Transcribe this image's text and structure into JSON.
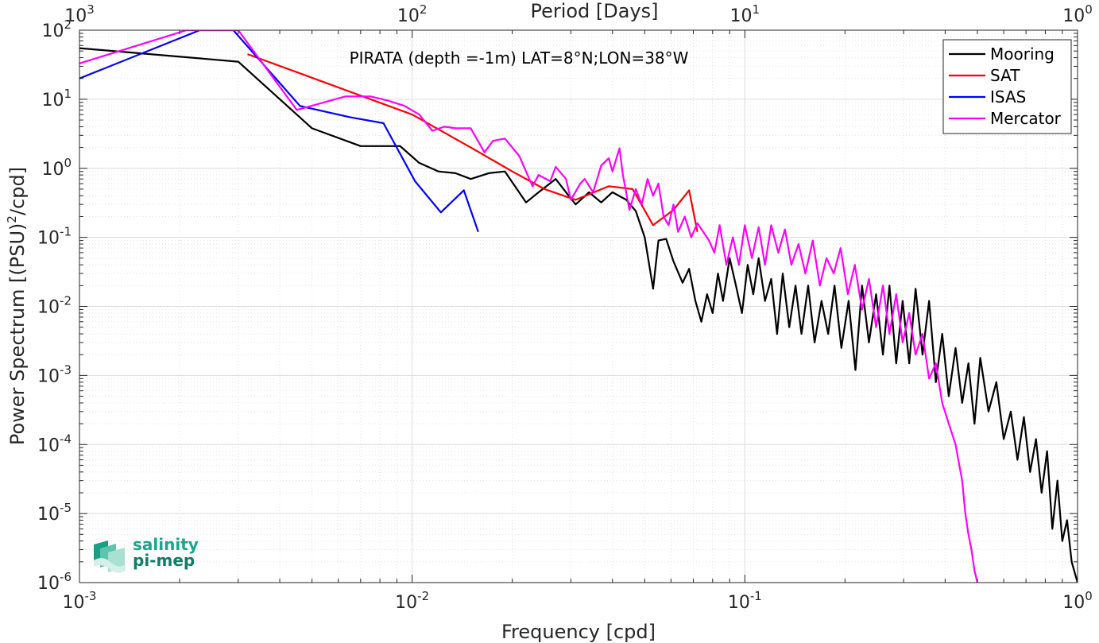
{
  "chart_data": {
    "type": "line",
    "title": "PIRATA (depth =-1m) LAT=8°N;LON=38°W",
    "xlabel": "Frequency [cpd]",
    "ylabel_main": "Power Spectrum [(PSU)",
    "ylabel_sup": "2",
    "ylabel_tail": "/cpd]",
    "x2label": "Period [Days]",
    "xscale": "log",
    "yscale": "log",
    "xlim": [
      0.001,
      1
    ],
    "ylim": [
      1e-06,
      100
    ],
    "grid": true,
    "legend_position": "top-right",
    "x_ticks": [
      {
        "base": "10",
        "exp": "-3",
        "value": 0.001
      },
      {
        "base": "10",
        "exp": "-2",
        "value": 0.01
      },
      {
        "base": "10",
        "exp": "-1",
        "value": 0.1
      },
      {
        "base": "10",
        "exp": "0",
        "value": 1
      }
    ],
    "x2_ticks": [
      {
        "base": "10",
        "exp": "3",
        "value": 0.001
      },
      {
        "base": "10",
        "exp": "2",
        "value": 0.01
      },
      {
        "base": "10",
        "exp": "1",
        "value": 0.1
      },
      {
        "base": "10",
        "exp": "0",
        "value": 1
      }
    ],
    "y_ticks": [
      {
        "base": "10",
        "exp": "2",
        "value": 100
      },
      {
        "base": "10",
        "exp": "1",
        "value": 10
      },
      {
        "base": "10",
        "exp": "0",
        "value": 1
      },
      {
        "base": "10",
        "exp": "-1",
        "value": 0.1
      },
      {
        "base": "10",
        "exp": "-2",
        "value": 0.01
      },
      {
        "base": "10",
        "exp": "-3",
        "value": 0.001
      },
      {
        "base": "10",
        "exp": "-4",
        "value": 0.0001
      },
      {
        "base": "10",
        "exp": "-5",
        "value": 1e-05
      },
      {
        "base": "10",
        "exp": "-6",
        "value": 1e-06
      }
    ],
    "series": [
      {
        "name": "Mooring",
        "color": "#000000",
        "x": [
          0.001,
          0.003,
          0.005,
          0.007,
          0.0092,
          0.0105,
          0.012,
          0.0135,
          0.015,
          0.017,
          0.019,
          0.022,
          0.024,
          0.027,
          0.029,
          0.031,
          0.034,
          0.037,
          0.04,
          0.044,
          0.047,
          0.05,
          0.053,
          0.055,
          0.058,
          0.061,
          0.065,
          0.068,
          0.071,
          0.074,
          0.077,
          0.08,
          0.083,
          0.086,
          0.09,
          0.094,
          0.098,
          0.102,
          0.106,
          0.11,
          0.115,
          0.12,
          0.125,
          0.13,
          0.136,
          0.142,
          0.148,
          0.155,
          0.162,
          0.17,
          0.178,
          0.186,
          0.195,
          0.205,
          0.215,
          0.225,
          0.236,
          0.248,
          0.26,
          0.272,
          0.285,
          0.298,
          0.312,
          0.326,
          0.342,
          0.358,
          0.375,
          0.392,
          0.41,
          0.43,
          0.45,
          0.47,
          0.49,
          0.51,
          0.54,
          0.57,
          0.6,
          0.63,
          0.66,
          0.69,
          0.72,
          0.75,
          0.78,
          0.81,
          0.84,
          0.87,
          0.9,
          0.93,
          0.96,
          1.0
        ],
        "y": [
          55,
          35,
          3.8,
          2.1,
          2.1,
          1.2,
          0.9,
          0.85,
          0.7,
          0.85,
          0.9,
          0.32,
          0.45,
          0.7,
          0.45,
          0.3,
          0.45,
          0.32,
          0.45,
          0.35,
          0.24,
          0.1,
          0.018,
          0.09,
          0.095,
          0.045,
          0.022,
          0.035,
          0.012,
          0.006,
          0.015,
          0.008,
          0.03,
          0.012,
          0.05,
          0.02,
          0.008,
          0.04,
          0.015,
          0.05,
          0.012,
          0.025,
          0.004,
          0.03,
          0.005,
          0.02,
          0.004,
          0.02,
          0.003,
          0.012,
          0.004,
          0.02,
          0.0025,
          0.012,
          0.0012,
          0.02,
          0.003,
          0.015,
          0.002,
          0.02,
          0.0015,
          0.012,
          0.0015,
          0.018,
          0.002,
          0.012,
          0.0008,
          0.004,
          0.0005,
          0.0025,
          0.0004,
          0.0015,
          0.0002,
          0.0018,
          0.0003,
          0.0008,
          0.00012,
          0.0003,
          6e-05,
          0.00025,
          4e-05,
          0.00012,
          2e-05,
          8e-05,
          6e-06,
          3e-05,
          4e-06,
          8e-06,
          2e-06,
          1e-06
        ]
      },
      {
        "name": "SAT",
        "color": "#ff0000",
        "x": [
          0.0032,
          0.01,
          0.015,
          0.02,
          0.025,
          0.031,
          0.039,
          0.046,
          0.053,
          0.061,
          0.068,
          0.072
        ],
        "y": [
          45,
          6,
          2,
          0.9,
          0.5,
          0.35,
          0.55,
          0.5,
          0.15,
          0.25,
          0.48,
          0.12
        ]
      },
      {
        "name": "ISAS",
        "color": "#0000ff",
        "x": [
          0.001,
          0.0023,
          0.0029,
          0.0046,
          0.0065,
          0.0082,
          0.0102,
          0.0122,
          0.0143,
          0.0158
        ],
        "y": [
          20,
          100,
          100,
          8,
          5.5,
          4.5,
          0.65,
          0.23,
          0.48,
          0.12
        ]
      },
      {
        "name": "Mercator",
        "color": "#ff00ff",
        "x": [
          0.001,
          0.0021,
          0.003,
          0.0045,
          0.0063,
          0.0075,
          0.0085,
          0.0095,
          0.0105,
          0.0115,
          0.0125,
          0.0135,
          0.015,
          0.0165,
          0.0175,
          0.019,
          0.021,
          0.023,
          0.024,
          0.026,
          0.027,
          0.029,
          0.03,
          0.032,
          0.033,
          0.035,
          0.037,
          0.039,
          0.04,
          0.042,
          0.043,
          0.045,
          0.047,
          0.049,
          0.051,
          0.053,
          0.055,
          0.057,
          0.059,
          0.061,
          0.063,
          0.066,
          0.069,
          0.072,
          0.075,
          0.078,
          0.081,
          0.084,
          0.088,
          0.092,
          0.096,
          0.1,
          0.105,
          0.11,
          0.115,
          0.12,
          0.126,
          0.132,
          0.138,
          0.145,
          0.152,
          0.16,
          0.168,
          0.176,
          0.185,
          0.194,
          0.204,
          0.214,
          0.225,
          0.236,
          0.248,
          0.26,
          0.272,
          0.285,
          0.298,
          0.312,
          0.326,
          0.342,
          0.358,
          0.375,
          0.392,
          0.41,
          0.43,
          0.45,
          0.46,
          0.47,
          0.48,
          0.49,
          0.5
        ],
        "y": [
          33,
          100,
          100,
          7,
          11,
          11,
          9.5,
          8,
          6,
          3.5,
          4,
          3.8,
          3.8,
          1.7,
          2.5,
          2.7,
          1.5,
          0.55,
          0.8,
          0.65,
          1.05,
          0.7,
          0.35,
          0.6,
          0.7,
          0.45,
          1.1,
          1.4,
          0.9,
          1.95,
          0.8,
          0.25,
          0.5,
          0.3,
          0.7,
          0.4,
          0.6,
          0.2,
          0.15,
          0.3,
          0.12,
          0.2,
          0.1,
          0.16,
          0.12,
          0.09,
          0.06,
          0.15,
          0.04,
          0.1,
          0.04,
          0.15,
          0.05,
          0.14,
          0.04,
          0.15,
          0.06,
          0.13,
          0.04,
          0.08,
          0.03,
          0.09,
          0.02,
          0.05,
          0.03,
          0.07,
          0.015,
          0.04,
          0.009,
          0.025,
          0.005,
          0.02,
          0.004,
          0.015,
          0.003,
          0.008,
          0.002,
          0.004,
          0.0009,
          0.0015,
          0.0004,
          0.0002,
          0.0001,
          3e-05,
          1e-05,
          5e-06,
          3e-06,
          1.5e-06,
          1e-06
        ]
      }
    ]
  },
  "logo": {
    "line1": "salinity",
    "line2": "pi-mep"
  }
}
